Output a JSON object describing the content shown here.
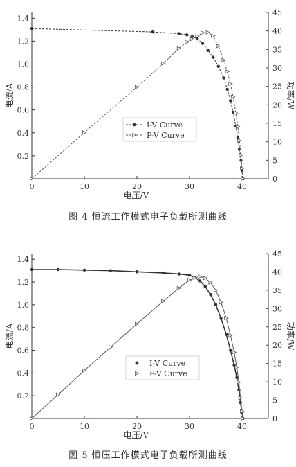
{
  "figures": [
    {
      "caption": "图 4 恒流工作模式电子负载所测曲线"
    },
    {
      "caption": "图 5 恒压工作模式电子负载所测曲线"
    }
  ],
  "chart_data": [
    {
      "type": "line",
      "title": "",
      "xlabel": "电压/V",
      "ylabel_left": "电流/A",
      "ylabel_right": "功率/W",
      "xlim": [
        0,
        45
      ],
      "ylim_left": [
        0,
        1.45
      ],
      "ylim_right": [
        0,
        45
      ],
      "x_ticks": [
        "0",
        "10",
        "20",
        "30",
        "40"
      ],
      "y_left_ticks": [
        "0.2",
        "0.4",
        "0.6",
        "0.8",
        "1.0",
        "1.2",
        "1.4"
      ],
      "y_right_ticks": [
        "0",
        "5",
        "10",
        "15",
        "20",
        "25",
        "30",
        "35",
        "40",
        "45"
      ],
      "legend_position": "center-left",
      "series": [
        {
          "name": "I-V Curve",
          "axis": "left",
          "marker": "filled-circle",
          "color": "#333333",
          "x": [
            0.0,
            23.0,
            28.0,
            29.5,
            30.5,
            31.5,
            32.5,
            33.5,
            34.5,
            35.5,
            36.5,
            37.2,
            37.8,
            38.3,
            38.8,
            39.2,
            39.5,
            39.8,
            40.0,
            40.2
          ],
          "y": [
            1.31,
            1.28,
            1.265,
            1.255,
            1.24,
            1.22,
            1.18,
            1.12,
            1.06,
            0.98,
            0.88,
            0.78,
            0.68,
            0.58,
            0.46,
            0.36,
            0.26,
            0.16,
            0.07,
            0.0
          ]
        },
        {
          "name": "P-V Curve",
          "axis": "right",
          "marker": "open-triangle",
          "color": "#555555",
          "x": [
            0.0,
            10.0,
            20.0,
            25.0,
            28.0,
            29.5,
            30.5,
            31.5,
            32.5,
            33.5,
            34.5,
            35.5,
            36.5,
            37.2,
            37.8,
            38.3,
            38.8,
            39.2,
            39.5,
            39.8,
            40.0,
            40.2
          ],
          "y": [
            0.0,
            12.5,
            24.8,
            31.2,
            35.3,
            37.0,
            37.8,
            38.6,
            39.5,
            39.6,
            38.7,
            35.9,
            32.1,
            29.0,
            25.7,
            22.2,
            17.8,
            14.1,
            10.3,
            6.4,
            2.8,
            0.0
          ]
        }
      ]
    },
    {
      "type": "line",
      "title": "",
      "xlabel": "电压/V",
      "ylabel_left": "电流/A",
      "ylabel_right": "功率/W",
      "xlim": [
        0,
        45
      ],
      "ylim_left": [
        0,
        1.45
      ],
      "ylim_right": [
        0,
        45
      ],
      "x_ticks": [
        "0",
        "10",
        "20",
        "30",
        "40"
      ],
      "y_left_ticks": [
        "0.2",
        "0.4",
        "0.6",
        "0.8",
        "1.0",
        "1.2",
        "1.4"
      ],
      "y_right_ticks": [
        "0",
        "5",
        "10",
        "15",
        "20",
        "25",
        "30",
        "35",
        "40",
        "45"
      ],
      "legend_position": "center",
      "series": [
        {
          "name": "I-V Curve",
          "axis": "left",
          "marker": "filled-circle",
          "color": "#333333",
          "x": [
            0.0,
            5.0,
            10.0,
            15.0,
            20.0,
            25.0,
            28.0,
            30.0,
            31.0,
            32.0,
            33.0,
            34.0,
            35.0,
            36.0,
            37.0,
            37.8,
            38.5,
            39.0,
            39.4,
            39.7,
            40.0,
            40.2
          ],
          "y": [
            1.31,
            1.31,
            1.305,
            1.3,
            1.29,
            1.28,
            1.27,
            1.26,
            1.24,
            1.21,
            1.16,
            1.09,
            1.0,
            0.88,
            0.74,
            0.6,
            0.47,
            0.36,
            0.25,
            0.14,
            0.05,
            0.0
          ]
        },
        {
          "name": "P-V Curve",
          "axis": "right",
          "marker": "open-triangle",
          "color": "#555555",
          "x": [
            0.0,
            5.0,
            10.0,
            15.0,
            20.0,
            25.0,
            28.0,
            30.0,
            31.0,
            32.0,
            33.0,
            34.0,
            35.0,
            36.0,
            37.0,
            37.8,
            38.5,
            39.0,
            39.4,
            39.7,
            40.0,
            40.2
          ],
          "y": [
            0.0,
            6.5,
            13.1,
            19.5,
            25.8,
            32.0,
            35.6,
            37.8,
            38.4,
            38.7,
            38.3,
            37.1,
            35.0,
            31.7,
            27.4,
            22.7,
            18.1,
            14.0,
            9.9,
            5.6,
            2.0,
            0.0
          ]
        }
      ]
    }
  ]
}
